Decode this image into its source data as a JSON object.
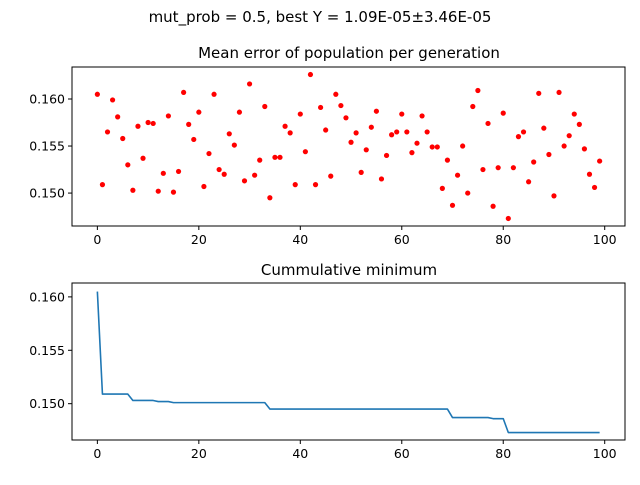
{
  "figure": {
    "suptitle": "mut_prob = 0.5, best Y = 1.09E-05±3.46E-05"
  },
  "chart_data": [
    {
      "type": "scatter",
      "title": "Mean error of population per generation",
      "xlabel": "",
      "ylabel": "",
      "xlim": [
        -5,
        104
      ],
      "ylim": [
        0.1465,
        0.1634
      ],
      "xticks": [
        0,
        20,
        40,
        60,
        80,
        100
      ],
      "yticks": [
        0.15,
        0.155,
        0.16
      ],
      "ytick_labels": [
        "0.150",
        "0.155",
        "0.160"
      ],
      "grid": false,
      "color": "#ff0000",
      "series": [
        {
          "x": [
            0,
            1,
            2,
            3,
            4,
            5,
            6,
            7,
            8,
            9,
            10,
            11,
            12,
            13,
            14,
            15,
            16,
            17,
            18,
            19,
            20,
            21,
            22,
            23,
            24,
            25,
            26,
            27,
            28,
            29,
            30,
            31,
            32,
            33,
            34,
            35,
            36,
            37,
            38,
            39,
            40,
            41,
            42,
            43,
            44,
            45,
            46,
            47,
            48,
            49,
            50,
            51,
            52,
            53,
            54,
            55,
            56,
            57,
            58,
            59,
            60,
            61,
            62,
            63,
            64,
            65,
            66,
            67,
            68,
            69,
            70,
            71,
            72,
            73,
            74,
            75,
            76,
            77,
            78,
            79,
            80,
            81,
            82,
            83,
            84,
            85,
            86,
            87,
            88,
            89,
            90,
            91,
            92,
            93,
            94,
            95,
            96,
            97,
            98,
            99
          ],
          "y": [
            0.1605,
            0.1509,
            0.1565,
            0.1599,
            0.1581,
            0.1558,
            0.153,
            0.1503,
            0.1571,
            0.1537,
            0.1575,
            0.1574,
            0.1502,
            0.1521,
            0.1582,
            0.1501,
            0.1523,
            0.1607,
            0.1573,
            0.1557,
            0.1586,
            0.1507,
            0.1542,
            0.1605,
            0.1525,
            0.152,
            0.1563,
            0.1551,
            0.1586,
            0.1513,
            0.1616,
            0.1519,
            0.1535,
            0.1592,
            0.1495,
            0.1538,
            0.1538,
            0.1571,
            0.1564,
            0.1509,
            0.1584,
            0.1544,
            0.1626,
            0.1509,
            0.1591,
            0.1567,
            0.1518,
            0.1605,
            0.1593,
            0.158,
            0.1554,
            0.1564,
            0.1522,
            0.1546,
            0.157,
            0.1587,
            0.1515,
            0.154,
            0.1562,
            0.1565,
            0.1584,
            0.1565,
            0.1543,
            0.1553,
            0.1582,
            0.1565,
            0.1549,
            0.1549,
            0.1505,
            0.1535,
            0.1487,
            0.1519,
            0.155,
            0.15,
            0.1592,
            0.1609,
            0.1525,
            0.1574,
            0.1486,
            0.1527,
            0.1585,
            0.1473,
            0.1527,
            0.156,
            0.1565,
            0.1512,
            0.1533,
            0.1606,
            0.1569,
            0.1541,
            0.1497,
            0.1607,
            0.155,
            0.1561,
            0.1584,
            0.1573,
            0.1547,
            0.152,
            0.1506,
            0.1534
          ]
        }
      ]
    },
    {
      "type": "line",
      "title": "Cummulative minimum",
      "xlabel": "",
      "ylabel": "",
      "xlim": [
        -5,
        104
      ],
      "ylim": [
        0.1466,
        0.1613
      ],
      "xticks": [
        0,
        20,
        40,
        60,
        80,
        100
      ],
      "yticks": [
        0.15,
        0.155,
        0.16
      ],
      "ytick_labels": [
        "0.150",
        "0.155",
        "0.160"
      ],
      "grid": false,
      "color": "#1f77b4",
      "series": [
        {
          "x": [
            0,
            1,
            2,
            3,
            4,
            5,
            6,
            7,
            8,
            9,
            10,
            11,
            12,
            13,
            14,
            15,
            16,
            17,
            18,
            19,
            20,
            21,
            22,
            23,
            24,
            25,
            26,
            27,
            28,
            29,
            30,
            31,
            32,
            33,
            34,
            35,
            36,
            37,
            38,
            39,
            40,
            41,
            42,
            43,
            44,
            45,
            46,
            47,
            48,
            49,
            50,
            51,
            52,
            53,
            54,
            55,
            56,
            57,
            58,
            59,
            60,
            61,
            62,
            63,
            64,
            65,
            66,
            67,
            68,
            69,
            70,
            71,
            72,
            73,
            74,
            75,
            76,
            77,
            78,
            79,
            80,
            81,
            82,
            83,
            84,
            85,
            86,
            87,
            88,
            89,
            90,
            91,
            92,
            93,
            94,
            95,
            96,
            97,
            98,
            99
          ],
          "y": [
            0.1605,
            0.1509,
            0.1509,
            0.1509,
            0.1509,
            0.1509,
            0.1509,
            0.1503,
            0.1503,
            0.1503,
            0.1503,
            0.1503,
            0.1502,
            0.1502,
            0.1502,
            0.1501,
            0.1501,
            0.1501,
            0.1501,
            0.1501,
            0.1501,
            0.1501,
            0.1501,
            0.1501,
            0.1501,
            0.1501,
            0.1501,
            0.1501,
            0.1501,
            0.1501,
            0.1501,
            0.1501,
            0.1501,
            0.1501,
            0.1495,
            0.1495,
            0.1495,
            0.1495,
            0.1495,
            0.1495,
            0.1495,
            0.1495,
            0.1495,
            0.1495,
            0.1495,
            0.1495,
            0.1495,
            0.1495,
            0.1495,
            0.1495,
            0.1495,
            0.1495,
            0.1495,
            0.1495,
            0.1495,
            0.1495,
            0.1495,
            0.1495,
            0.1495,
            0.1495,
            0.1495,
            0.1495,
            0.1495,
            0.1495,
            0.1495,
            0.1495,
            0.1495,
            0.1495,
            0.1495,
            0.1495,
            0.1487,
            0.1487,
            0.1487,
            0.1487,
            0.1487,
            0.1487,
            0.1487,
            0.1487,
            0.1486,
            0.1486,
            0.1486,
            0.1473,
            0.1473,
            0.1473,
            0.1473,
            0.1473,
            0.1473,
            0.1473,
            0.1473,
            0.1473,
            0.1473,
            0.1473,
            0.1473,
            0.1473,
            0.1473,
            0.1473,
            0.1473,
            0.1473,
            0.1473,
            0.1473
          ]
        }
      ]
    }
  ]
}
